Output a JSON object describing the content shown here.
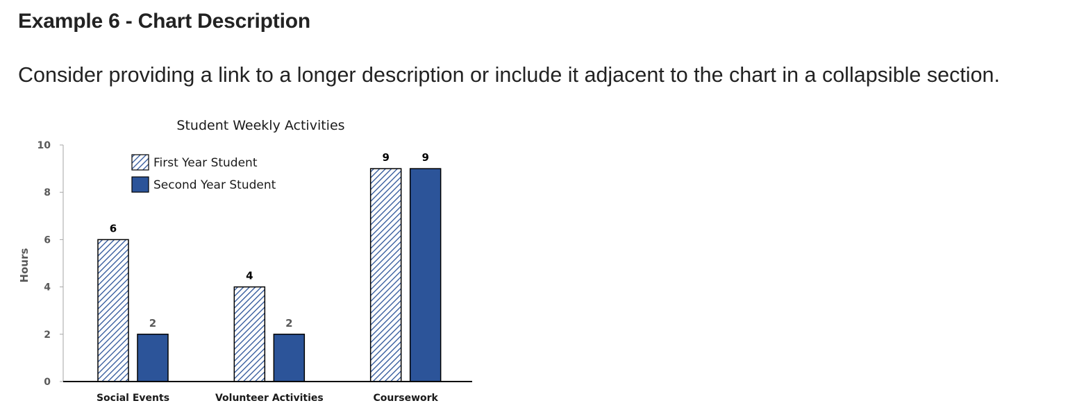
{
  "page": {
    "heading": "Example 6 - Chart Description",
    "intro": "Consider providing a link to a longer description or include it adjacent to the chart in a collapsible section."
  },
  "chart_data": {
    "type": "bar",
    "title": "Student Weekly Activities",
    "xlabel": "",
    "ylabel": "Hours",
    "categories": [
      "Social Events",
      "Volunteer Activities",
      "Coursework"
    ],
    "series": [
      {
        "name": "First Year Student",
        "values": [
          6,
          4,
          9
        ],
        "color": "#2a5298",
        "pattern": "diagonal-hatch"
      },
      {
        "name": "Second Year Student",
        "values": [
          2,
          2,
          9
        ],
        "color": "#2c5499",
        "pattern": "solid"
      }
    ],
    "ylim": [
      0,
      10
    ],
    "yticks": [
      0,
      2,
      4,
      6,
      8,
      10
    ],
    "grid": false,
    "legend": "top-left",
    "data_labels": true,
    "label_colors": {
      "dark": "#000000",
      "muted": "#595959"
    }
  }
}
